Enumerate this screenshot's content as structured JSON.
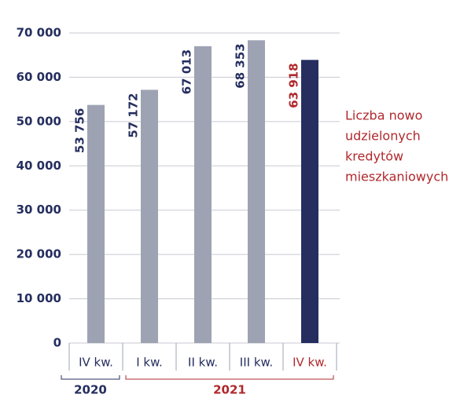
{
  "chart_data": {
    "type": "bar",
    "categories": [
      "IV kw.",
      "I kw.",
      "II kw.",
      "III kw.",
      "IV kw."
    ],
    "values": [
      53756,
      57172,
      67013,
      68353,
      63918
    ],
    "value_labels": [
      "53 756",
      "57 172",
      "67 013",
      "68 353",
      "63 918"
    ],
    "colors": [
      "#9ea3b3",
      "#9ea3b3",
      "#9ea3b3",
      "#9ea3b3",
      "#252e5f"
    ],
    "label_colors": [
      "#252e5f",
      "#252e5f",
      "#252e5f",
      "#252e5f",
      "#b0282c"
    ],
    "groups": [
      {
        "label": "2020",
        "count": 1
      },
      {
        "label": "2021",
        "count": 4
      }
    ],
    "group_colors": [
      "#252e5f",
      "#b0282c"
    ],
    "annotation": [
      "Liczba nowo",
      "udzielonych",
      "kredytów",
      "mieszkaniowych"
    ],
    "ylim": [
      0,
      70000
    ],
    "yticks": [
      0,
      {
        "value": 10000,
        "label": "10 000"
      },
      {
        "value": 20000,
        "label": "20 000"
      },
      {
        "value": 30000,
        "label": "30 000"
      },
      {
        "value": 40000,
        "label": "40 000"
      },
      {
        "value": 50000,
        "label": "50 000"
      },
      {
        "value": 60000,
        "label": "60 000"
      },
      {
        "value": 70000,
        "label": "70 000"
      }
    ],
    "grid": true
  }
}
